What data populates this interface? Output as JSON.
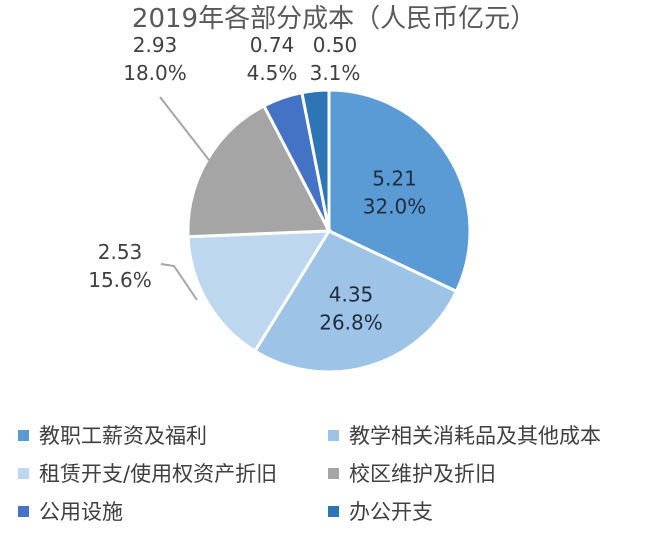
{
  "chart_data": {
    "type": "pie",
    "title": "2019年各部分成本（人民币亿元）",
    "unit": "人民币亿元",
    "slices": [
      {
        "name": "教职工薪资及福利",
        "value": 5.21,
        "percent": "32.0%",
        "value_label": "5.21",
        "color": "#5b9bd5"
      },
      {
        "name": "教学相关消耗品及其他成本",
        "value": 4.35,
        "percent": "26.8%",
        "value_label": "4.35",
        "color": "#9dc3e6"
      },
      {
        "name": "租赁开支/使用权资产折旧",
        "value": 2.53,
        "percent": "15.6%",
        "value_label": "2.53",
        "color": "#bdd7ee"
      },
      {
        "name": "校区维护及折旧",
        "value": 2.93,
        "percent": "18.0%",
        "value_label": "2.93",
        "color": "#a5a5a5"
      },
      {
        "name": "公用设施",
        "value": 0.74,
        "percent": "4.5%",
        "value_label": "0.74",
        "color": "#4472c4"
      },
      {
        "name": "办公开支",
        "value": 0.5,
        "percent": "3.1%",
        "value_label": "0.50",
        "color": "#2e75b6"
      }
    ],
    "legend_position": "bottom"
  }
}
